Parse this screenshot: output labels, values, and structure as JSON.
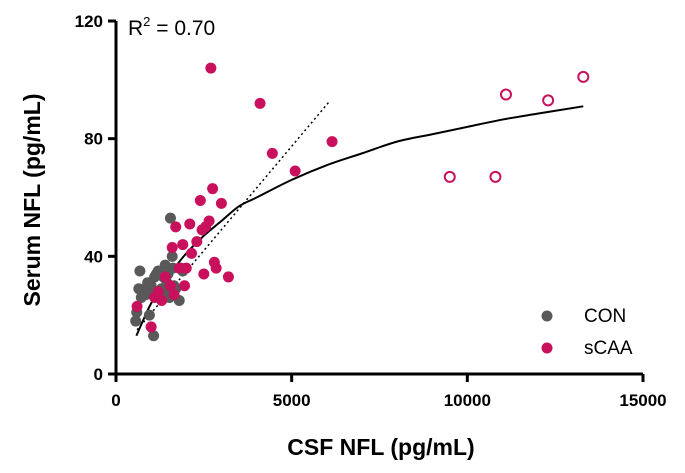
{
  "chart_data": {
    "type": "scatter",
    "title": "",
    "xlabel": "CSF NFL (pg/mL)",
    "ylabel": "Serum NFL (pg/mL)",
    "xlim": [
      0,
      15000
    ],
    "ylim": [
      0,
      120
    ],
    "x_ticks": [
      0,
      5000,
      10000,
      15000
    ],
    "x_tick_labels": [
      "0",
      "5000",
      "10000",
      "15000"
    ],
    "y_ticks": [
      0,
      40,
      80,
      120
    ],
    "y_tick_labels": [
      "0",
      "40",
      "80",
      "120"
    ],
    "grid": false,
    "legend_position": "bottom-right",
    "annotation": {
      "r2_label": "R",
      "r2_sup": "2",
      "r2_value": " = 0.70"
    },
    "colors": {
      "CON": "#595959",
      "sCAA": "#c8105c",
      "fit": "#000000"
    },
    "series": [
      {
        "name": "CON",
        "marker": "filled-circle",
        "points": [
          [
            560,
            18
          ],
          [
            590,
            21
          ],
          [
            650,
            29
          ],
          [
            680,
            35
          ],
          [
            720,
            26
          ],
          [
            780,
            28
          ],
          [
            850,
            27
          ],
          [
            900,
            31
          ],
          [
            950,
            20
          ],
          [
            1000,
            30
          ],
          [
            1030,
            28
          ],
          [
            1070,
            13
          ],
          [
            1100,
            33
          ],
          [
            1150,
            34
          ],
          [
            1200,
            35
          ],
          [
            1260,
            26
          ],
          [
            1300,
            29
          ],
          [
            1350,
            33
          ],
          [
            1400,
            37
          ],
          [
            1400,
            28
          ],
          [
            1450,
            31
          ],
          [
            1480,
            34
          ],
          [
            1520,
            26
          ],
          [
            1550,
            53
          ],
          [
            1600,
            40
          ],
          [
            1620,
            36
          ],
          [
            1650,
            30
          ],
          [
            1700,
            29
          ],
          [
            1800,
            25
          ],
          [
            1850,
            36
          ],
          [
            1900,
            35
          ]
        ]
      },
      {
        "name": "sCAA",
        "marker": "filled-circle",
        "points": [
          [
            600,
            23
          ],
          [
            1000,
            16
          ],
          [
            1100,
            26
          ],
          [
            1200,
            28
          ],
          [
            1300,
            25
          ],
          [
            1400,
            33
          ],
          [
            1550,
            30
          ],
          [
            1600,
            43
          ],
          [
            1650,
            27
          ],
          [
            1700,
            50
          ],
          [
            1800,
            36
          ],
          [
            1900,
            44
          ],
          [
            1950,
            30
          ],
          [
            2000,
            36
          ],
          [
            2100,
            51
          ],
          [
            2150,
            41
          ],
          [
            2300,
            45
          ],
          [
            2400,
            59
          ],
          [
            2450,
            49
          ],
          [
            2500,
            34
          ],
          [
            2550,
            50
          ],
          [
            2650,
            52
          ],
          [
            2700,
            104
          ],
          [
            2750,
            63
          ],
          [
            2800,
            38
          ],
          [
            2850,
            36
          ],
          [
            3000,
            58
          ],
          [
            3200,
            33
          ],
          [
            4100,
            92
          ],
          [
            4450,
            75
          ],
          [
            5100,
            69
          ],
          [
            6150,
            79
          ]
        ]
      },
      {
        "name": "sCAA (open)",
        "marker": "open-circle",
        "in_legend": false,
        "points": [
          [
            9500,
            67
          ],
          [
            10800,
            67
          ],
          [
            11100,
            95
          ],
          [
            12300,
            93
          ],
          [
            13300,
            101
          ]
        ]
      }
    ],
    "fit_curve": {
      "type": "saturating",
      "points": [
        [
          580,
          13
        ],
        [
          800,
          19
        ],
        [
          1000,
          24
        ],
        [
          1300,
          30
        ],
        [
          1600,
          35
        ],
        [
          2000,
          41
        ],
        [
          2500,
          47
        ],
        [
          3000,
          52
        ],
        [
          3500,
          57
        ],
        [
          4000,
          60
        ],
        [
          5000,
          66
        ],
        [
          6000,
          71
        ],
        [
          7000,
          75
        ],
        [
          8000,
          79
        ],
        [
          9000,
          81.5
        ],
        [
          10000,
          84
        ],
        [
          11000,
          86.5
        ],
        [
          12000,
          88.5
        ],
        [
          13300,
          91
        ]
      ]
    },
    "dotted_line": {
      "points": [
        [
          600,
          15
        ],
        [
          6100,
          93
        ]
      ]
    }
  }
}
